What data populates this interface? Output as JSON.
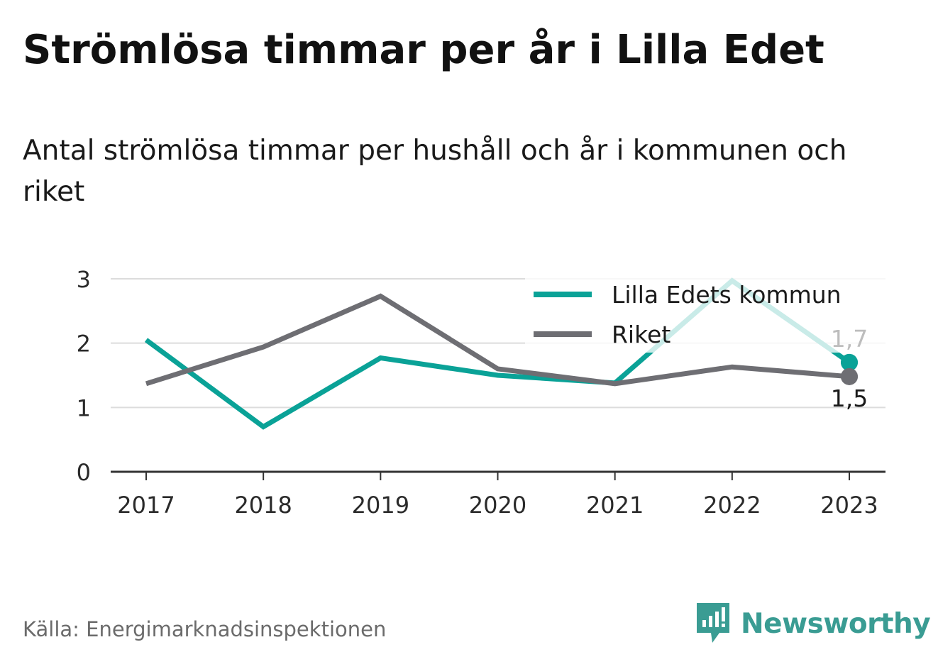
{
  "title": "Strömlösa timmar per år i Lilla Edet",
  "subtitle": "Antal strömlösa timmar per hushåll och år i kommunen och riket",
  "source": "Källa: Energimarknadsinspektionen",
  "brand": "Newsworthy",
  "colors": {
    "kommun": "#0aa297",
    "riket": "#6e6e73",
    "grid": "#dcdcdc",
    "axis": "#333333",
    "brand": "#3a9c93"
  },
  "chart_data": {
    "type": "line",
    "x": [
      "2017",
      "2018",
      "2019",
      "2020",
      "2021",
      "2022",
      "2023"
    ],
    "y_ticks": [
      "0",
      "1",
      "2",
      "3"
    ],
    "ylim": [
      0,
      3
    ],
    "grid": true,
    "legend_position": "top-right",
    "series": [
      {
        "name": "Lilla Edets kommun",
        "color": "#0aa297",
        "values": [
          2.05,
          0.7,
          1.77,
          1.5,
          1.38,
          2.97,
          1.7
        ],
        "end_label": "1,7"
      },
      {
        "name": "Riket",
        "color": "#6e6e73",
        "values": [
          1.37,
          1.94,
          2.73,
          1.6,
          1.37,
          1.63,
          1.48
        ],
        "end_label": "1,5"
      }
    ]
  }
}
